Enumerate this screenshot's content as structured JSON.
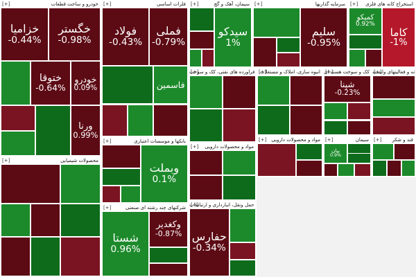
{
  "colors": {
    "red_dark": "#5c0a14",
    "red_mid": "#7a1422",
    "red_bright": "#b5182a",
    "green_dark": "#0e6b1c",
    "green_mid": "#1c8a2b",
    "green_bright": "#25a838",
    "neutral": "#6e6e6e",
    "background": "#f2f2f2",
    "header_bg": "#ffffff"
  },
  "expand_label": "[+]",
  "sectors": [
    {
      "title": "خودرو و ساخت قطعات",
      "tiles": [
        {
          "name": "خگستر",
          "change": "-0.98%",
          "c": "red_dark"
        },
        {
          "name": "خزامیا",
          "change": "-0.44%",
          "c": "red_dark"
        },
        {
          "name": "خودرو",
          "change": "0.09%",
          "c": "red_dark"
        },
        {
          "name": "ختوقا",
          "change": "-0.64%",
          "c": "red_dark"
        },
        {
          "name": "",
          "change": "",
          "c": "green_mid"
        },
        {
          "name": "ورنا",
          "change": "0.99%",
          "c": "red_dark"
        },
        {
          "name": "",
          "change": "",
          "c": "green_dark"
        },
        {
          "name": "",
          "change": "",
          "c": "red_mid"
        },
        {
          "name": "",
          "change": "",
          "c": "green_mid"
        }
      ]
    },
    {
      "title": "فلزات اساسی",
      "tiles": [
        {
          "name": "فملی",
          "change": "-0.79%",
          "c": "red_dark"
        },
        {
          "name": "فولاد",
          "change": "-0.43%",
          "c": "red_dark"
        },
        {
          "name": "فاسمین",
          "change": "",
          "c": "green_mid"
        },
        {
          "name": "",
          "change": "",
          "c": "green_dark"
        },
        {
          "name": "",
          "change": "",
          "c": "red_dark"
        },
        {
          "name": "",
          "change": "",
          "c": "green_mid"
        },
        {
          "name": "",
          "change": "",
          "c": "red_mid"
        }
      ]
    },
    {
      "title": "سیمان، آهک و گچ",
      "tiles": [
        {
          "name": "سیدکو",
          "change": "1%",
          "c": "green_mid"
        },
        {
          "name": "",
          "change": "",
          "c": "green_dark"
        },
        {
          "name": "",
          "change": "",
          "c": "red_dark"
        },
        {
          "name": "",
          "change": "",
          "c": "green_mid"
        },
        {
          "name": "",
          "change": "",
          "c": "red_mid"
        }
      ]
    },
    {
      "title": "سرمایه گذاریها",
      "tiles": [
        {
          "name": "سلیم",
          "change": "-0.95%",
          "c": "red_dark"
        },
        {
          "name": "",
          "change": "",
          "c": "green_mid"
        },
        {
          "name": "",
          "change": "",
          "c": "red_dark"
        },
        {
          "name": "",
          "change": "",
          "c": "green_dark"
        },
        {
          "name": "",
          "change": "",
          "c": "red_mid"
        }
      ]
    },
    {
      "title": "استخراج کانه های فلزی",
      "tiles": [
        {
          "name": "کاما",
          "change": "-1%",
          "c": "red_bright"
        },
        {
          "name": "کمیکو",
          "change": "0.92%",
          "c": "green_mid"
        },
        {
          "name": "",
          "change": "",
          "c": "green_dark"
        },
        {
          "name": "",
          "change": "",
          "c": "green_mid"
        },
        {
          "name": "",
          "change": "",
          "c": "red_dark"
        }
      ]
    },
    {
      "title": "محصولات شیمیایی",
      "tiles": [
        {
          "name": "",
          "change": "",
          "c": "green_mid"
        },
        {
          "name": "",
          "change": "",
          "c": "red_dark"
        },
        {
          "name": "",
          "change": "",
          "c": "green_dark"
        },
        {
          "name": "",
          "change": "",
          "c": "red_dark"
        },
        {
          "name": "",
          "change": "",
          "c": "green_mid"
        },
        {
          "name": "",
          "change": "",
          "c": "red_mid"
        },
        {
          "name": "",
          "change": "",
          "c": "green_dark"
        },
        {
          "name": "",
          "change": "",
          "c": "red_dark"
        }
      ]
    },
    {
      "title": "بانکها و موسسات اعتباری",
      "tiles": [
        {
          "name": "وبملت",
          "change": "0.1%",
          "c": "green_mid"
        },
        {
          "name": "",
          "change": "",
          "c": "red_dark"
        },
        {
          "name": "",
          "change": "",
          "c": "green_dark"
        },
        {
          "name": "",
          "change": "",
          "c": "red_mid"
        },
        {
          "name": "",
          "change": "",
          "c": "green_mid"
        }
      ]
    },
    {
      "title": "شرکتهای چند رشته ای صنعتی",
      "tiles": [
        {
          "name": "شستا",
          "change": "0.96%",
          "c": "green_mid"
        },
        {
          "name": "وکغدیر",
          "change": "-0.87%",
          "c": "red_dark"
        },
        {
          "name": "",
          "change": "",
          "c": "green_dark"
        },
        {
          "name": "",
          "change": "",
          "c": "red_dark"
        }
      ]
    },
    {
      "title": "فراورده های نفتی، کک و سوخت",
      "tiles": [
        {
          "name": "",
          "change": "",
          "c": "green_mid"
        },
        {
          "name": "",
          "change": "",
          "c": "red_dark"
        },
        {
          "name": "",
          "change": "",
          "c": "green_dark"
        },
        {
          "name": "",
          "change": "",
          "c": "red_mid"
        }
      ]
    },
    {
      "title": "مواد و محصولات دارویی",
      "tiles": [
        {
          "name": "",
          "change": "",
          "c": "red_dark"
        },
        {
          "name": "",
          "change": "",
          "c": "green_mid"
        },
        {
          "name": "",
          "change": "",
          "c": "red_dark"
        },
        {
          "name": "",
          "change": "",
          "c": "green_dark"
        }
      ]
    },
    {
      "title": "حمل ونقل، انبارداری و ارتباطات",
      "tiles": [
        {
          "name": "حفارس",
          "change": "-0.34%",
          "c": "red_dark"
        },
        {
          "name": "",
          "change": "",
          "c": "green_mid"
        },
        {
          "name": "",
          "change": "",
          "c": "red_mid"
        },
        {
          "name": "",
          "change": "",
          "c": "green_dark"
        }
      ]
    },
    {
      "title": "انبوه سازی، املاک و مستغلات",
      "tiles": [
        {
          "name": "",
          "change": "",
          "c": "green_mid"
        },
        {
          "name": "",
          "change": "",
          "c": "red_dark"
        },
        {
          "name": "",
          "change": "",
          "c": "green_dark"
        },
        {
          "name": "",
          "change": "",
          "c": "red_dark"
        }
      ]
    },
    {
      "title": "فراورده های نفتی، کک و سوخت هسته ای",
      "tiles": [
        {
          "name": "شپنا",
          "change": "-0.23%",
          "c": "red_dark"
        },
        {
          "name": "",
          "change": "",
          "c": "green_mid"
        },
        {
          "name": "",
          "change": "",
          "c": "red_mid"
        },
        {
          "name": "",
          "change": "",
          "c": "green_dark"
        },
        {
          "name": "",
          "change": "",
          "c": "red_dark"
        }
      ]
    },
    {
      "title": "رایانه و فعالیتهای وابسته",
      "tiles": [
        {
          "name": "",
          "change": "",
          "c": "red_dark"
        },
        {
          "name": "",
          "change": "",
          "c": "green_mid"
        },
        {
          "name": "",
          "change": "",
          "c": "red_mid"
        }
      ]
    },
    {
      "title": "مواد و محصولات دارویی",
      "tiles": [
        {
          "name": "",
          "change": "",
          "c": "red_mid"
        },
        {
          "name": "",
          "change": "",
          "c": "green_dark"
        },
        {
          "name": "",
          "change": "",
          "c": "red_dark"
        }
      ]
    },
    {
      "title": "سیمان",
      "tiles": [
        {
          "name": "بیان",
          "change": "0.9%",
          "c": "green_mid"
        },
        {
          "name": "",
          "change": "",
          "c": "green_dark"
        },
        {
          "name": "",
          "change": "",
          "c": "red_dark"
        },
        {
          "name": "",
          "change": "",
          "c": "green_mid"
        },
        {
          "name": "",
          "change": "",
          "c": "red_mid"
        },
        {
          "name": "",
          "change": "",
          "c": "green_dark"
        }
      ]
    },
    {
      "title": "قند و شکر",
      "tiles": [
        {
          "name": "",
          "change": "",
          "c": "green_mid"
        },
        {
          "name": "",
          "change": "",
          "c": "red_dark"
        },
        {
          "name": "",
          "change": "",
          "c": "green_dark"
        },
        {
          "name": "",
          "change": "",
          "c": "red_dark"
        },
        {
          "name": "",
          "change": "",
          "c": "green_mid"
        }
      ]
    }
  ]
}
